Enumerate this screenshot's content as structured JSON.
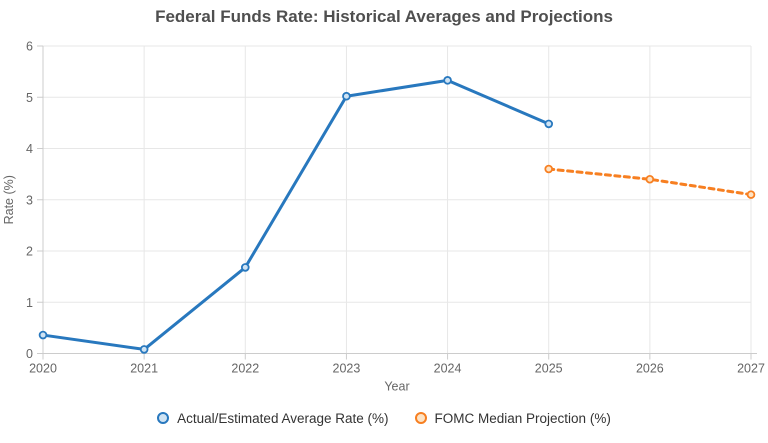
{
  "title": "Federal Funds Rate: Historical Averages and Projections",
  "chart_data": {
    "type": "line",
    "title": "Federal Funds Rate: Historical Averages and Projections",
    "xlabel": "Year",
    "ylabel": "Rate (%)",
    "xlim": [
      2020,
      2027
    ],
    "ylim": [
      0,
      6
    ],
    "x_ticks": [
      2020,
      2021,
      2022,
      2023,
      2024,
      2025,
      2026,
      2027
    ],
    "y_ticks": [
      0,
      1,
      2,
      3,
      4,
      5,
      6
    ],
    "grid": true,
    "legend_position": "bottom",
    "series": [
      {
        "name": "Actual/Estimated Average Rate (%)",
        "line_style": "solid",
        "color": "#2878be",
        "marker_fill": "#cfe3f3",
        "x": [
          2020,
          2021,
          2022,
          2023,
          2024,
          2025
        ],
        "y": [
          0.36,
          0.08,
          1.68,
          5.02,
          5.33,
          4.48
        ]
      },
      {
        "name": "FOMC Median Projection (%)",
        "line_style": "dashed",
        "color": "#f77f21",
        "marker_fill": "#fde3c5",
        "x": [
          2025,
          2026,
          2027
        ],
        "y": [
          3.6,
          3.4,
          3.1
        ]
      }
    ]
  },
  "style": {
    "background": "#ffffff",
    "title_color": "#4f4f4f",
    "grid_color": "#e7e7e7",
    "axis_color": "#cccccc",
    "tick_label_color": "#666666",
    "axis_title_color": "#666666",
    "legend_text_color": "#333333"
  }
}
